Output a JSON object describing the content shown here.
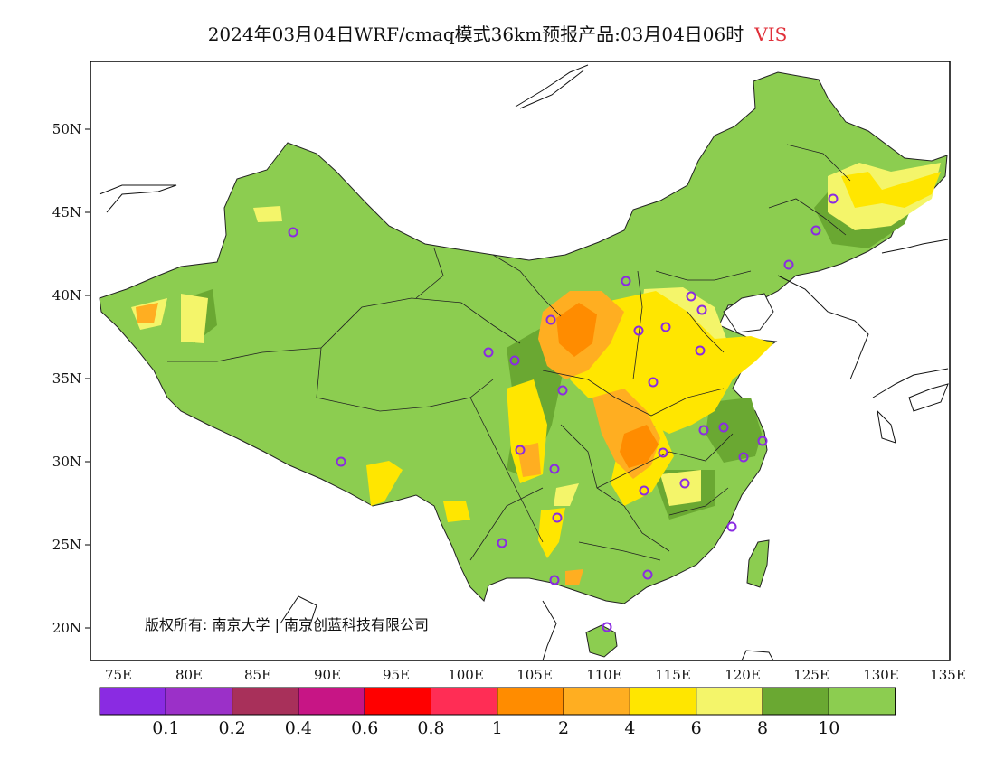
{
  "title": {
    "text": "2024年03月04日WRF/cmaq模式36km预报产品:03月04日06时",
    "variable": "VIS"
  },
  "map": {
    "lat_ticks": [
      "20N",
      "25N",
      "30N",
      "35N",
      "40N",
      "45N",
      "50N"
    ],
    "lon_ticks": [
      "75E",
      "80E",
      "85E",
      "90E",
      "95E",
      "100E",
      "105E",
      "110E",
      "115E",
      "120E",
      "125E",
      "130E",
      "135E"
    ],
    "copyright": "版权所有: 南京大学 | 南京创蓝科技有限公司"
  },
  "colorbar": {
    "colors": [
      "#8a2be2",
      "#9b30c8",
      "#a8305a",
      "#c71585",
      "#ff0000",
      "#ff2d55",
      "#ff8c00",
      "#ffae21",
      "#ffe600",
      "#f4f56a",
      "#6aa832",
      "#8ccd50"
    ],
    "labels": [
      "0.1",
      "0.2",
      "0.4",
      "0.6",
      "0.8",
      "1",
      "2",
      "4",
      "6",
      "8",
      "10"
    ]
  },
  "stations_marker_color": "#8a2be2"
}
